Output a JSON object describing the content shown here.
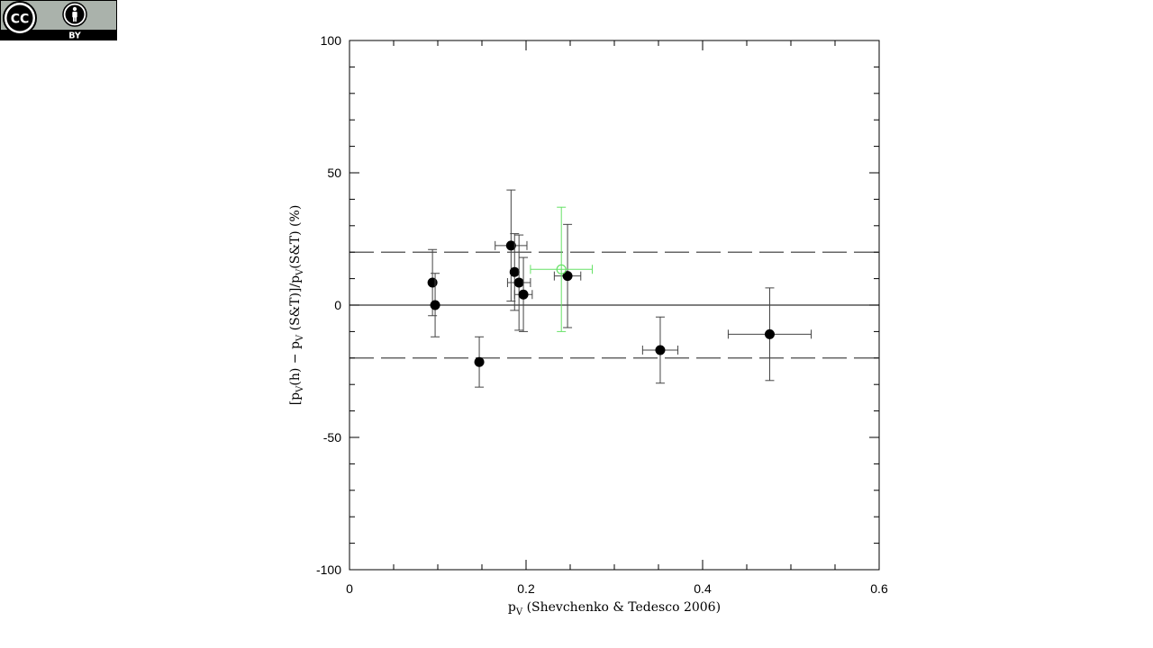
{
  "license": {
    "cc_text": "CC",
    "by_text": "BY",
    "icons": [
      "cc-icon",
      "attribution-person-icon"
    ],
    "badge_color": "#aab2ab"
  },
  "chart_data": {
    "type": "scatter",
    "xlabel": "p_V (Shevchenko & Tedesco 2006)",
    "xlabel_parts": {
      "p": "p",
      "sub": "V",
      "rest": " (Shevchenko & Tedesco 2006)"
    },
    "ylabel": "[p_V(h) − p_V(S&T)]/p_V(S&T) (%)",
    "ylabel_parts": {
      "a": "[p",
      "sub1": "V",
      "b": "(h) − p",
      "sub2": "V",
      "c": " (S&T)]/p",
      "sub3": "V",
      "d": "(S&T) (%)"
    },
    "xlim": [
      0,
      0.6
    ],
    "ylim": [
      -100,
      100
    ],
    "x_ticks": [
      0,
      0.2,
      0.4,
      0.6
    ],
    "x_tick_labels": [
      "0",
      "0.2",
      "0.4",
      "0.6"
    ],
    "y_ticks": [
      -100,
      -50,
      0,
      50,
      100
    ],
    "y_tick_labels": [
      "-100",
      "-50",
      "0",
      "50",
      "100"
    ],
    "reference_lines": [
      {
        "y": 0,
        "style": "solid"
      },
      {
        "y": 20,
        "style": "dashed"
      },
      {
        "y": -20,
        "style": "dashed"
      }
    ],
    "series": [
      {
        "marker": "filled-circle",
        "color": "#000000",
        "points": [
          {
            "x": 0.094,
            "y": 8.5,
            "xerr": 0,
            "yerr": [
              12.5,
              12.5
            ]
          },
          {
            "x": 0.097,
            "y": 0,
            "xerr": 0,
            "yerr": [
              12,
              12
            ]
          },
          {
            "x": 0.147,
            "y": -21.5,
            "xerr": 0,
            "yerr": [
              9.5,
              9.5
            ]
          },
          {
            "x": 0.183,
            "y": 22.5,
            "xerr": 0.018,
            "yerr": [
              21,
              21
            ]
          },
          {
            "x": 0.187,
            "y": 12.5,
            "xerr": 0,
            "yerr": [
              14.5,
              14.5
            ]
          },
          {
            "x": 0.192,
            "y": 8.5,
            "xerr": 0.013,
            "yerr": [
              18,
              18
            ]
          },
          {
            "x": 0.197,
            "y": 4,
            "xerr": 0.01,
            "yerr": [
              14,
              14
            ]
          },
          {
            "x": 0.247,
            "y": 11,
            "xerr": 0.015,
            "yerr": [
              19.5,
              19.5
            ]
          },
          {
            "x": 0.352,
            "y": -17,
            "xerr": 0.02,
            "yerr": [
              12.5,
              12.5
            ]
          },
          {
            "x": 0.476,
            "y": -11,
            "xerr": 0.047,
            "yerr": [
              17.5,
              17.5
            ]
          }
        ]
      },
      {
        "marker": "open-circle",
        "color": "#66e266",
        "points": [
          {
            "x": 0.24,
            "y": 13.5,
            "xerr": 0.035,
            "yerr": [
              23.5,
              23.5
            ]
          }
        ]
      }
    ]
  }
}
